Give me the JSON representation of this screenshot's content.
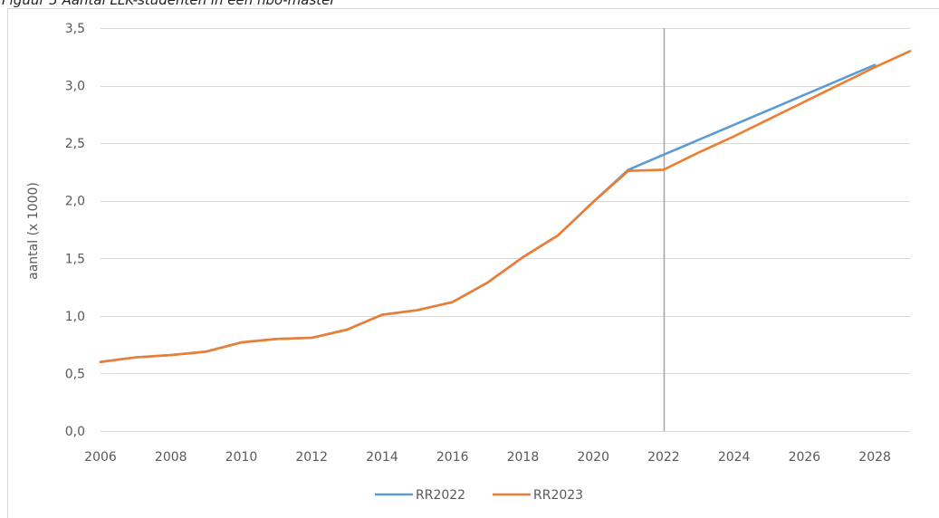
{
  "caption": "Figuur 3 Aantal LLK-studenten in een hbo-master",
  "chart_data": {
    "type": "line",
    "ylabel": "aantal (x 1000)",
    "xlabel": "",
    "xlim": [
      2006,
      2029
    ],
    "ylim": [
      0,
      3.5
    ],
    "x_ticks": [
      2006,
      2008,
      2010,
      2012,
      2014,
      2016,
      2018,
      2020,
      2022,
      2024,
      2026,
      2028
    ],
    "y_ticks": [
      0,
      0.5,
      1.0,
      1.5,
      2.0,
      2.5,
      3.0,
      3.5
    ],
    "x_tick_labels": [
      "2006",
      "2008",
      "2010",
      "2012",
      "2014",
      "2016",
      "2018",
      "2020",
      "2022",
      "2024",
      "2026",
      "2028"
    ],
    "y_tick_labels": [
      "0,0",
      "0,5",
      "1,0",
      "1,5",
      "2,0",
      "2,5",
      "3,0",
      "3,5"
    ],
    "grid": "horizontal",
    "reference_line_x": 2022,
    "legend_position": "bottom-center",
    "series": [
      {
        "name": "RR2022",
        "color": "#5b9bd5",
        "x": [
          2006,
          2007,
          2008,
          2009,
          2010,
          2011,
          2012,
          2013,
          2014,
          2015,
          2016,
          2017,
          2018,
          2019,
          2020,
          2021,
          2022,
          2023,
          2024,
          2025,
          2026,
          2027,
          2028
        ],
        "y": [
          0.6,
          0.64,
          0.66,
          0.69,
          0.77,
          0.8,
          0.81,
          0.88,
          1.01,
          1.05,
          1.12,
          1.29,
          1.51,
          1.7,
          1.99,
          2.27,
          2.4,
          2.53,
          2.66,
          2.79,
          2.92,
          3.05,
          3.18
        ]
      },
      {
        "name": "RR2023",
        "color": "#ed7d31",
        "x": [
          2006,
          2007,
          2008,
          2009,
          2010,
          2011,
          2012,
          2013,
          2014,
          2015,
          2016,
          2017,
          2018,
          2019,
          2020,
          2021,
          2022,
          2023,
          2024,
          2025,
          2026,
          2027,
          2028,
          2029
        ],
        "y": [
          0.6,
          0.64,
          0.66,
          0.69,
          0.77,
          0.8,
          0.81,
          0.88,
          1.01,
          1.05,
          1.12,
          1.29,
          1.51,
          1.7,
          1.99,
          2.26,
          2.27,
          2.42,
          2.56,
          2.71,
          2.86,
          3.01,
          3.16,
          3.3
        ]
      }
    ]
  }
}
